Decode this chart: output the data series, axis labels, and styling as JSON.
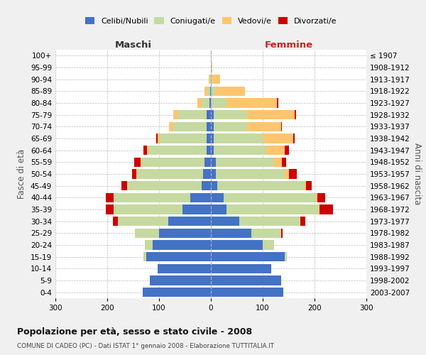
{
  "age_groups": [
    "100+",
    "95-99",
    "90-94",
    "85-89",
    "80-84",
    "75-79",
    "70-74",
    "65-69",
    "60-64",
    "55-59",
    "50-54",
    "45-49",
    "40-44",
    "35-39",
    "30-34",
    "25-29",
    "20-24",
    "15-19",
    "10-14",
    "5-9",
    "0-4"
  ],
  "birth_years": [
    "≤ 1907",
    "1908-1912",
    "1913-1917",
    "1918-1922",
    "1923-1927",
    "1928-1932",
    "1933-1937",
    "1938-1942",
    "1943-1947",
    "1948-1952",
    "1953-1957",
    "1958-1962",
    "1963-1967",
    "1968-1972",
    "1973-1977",
    "1978-1982",
    "1983-1987",
    "1988-1992",
    "1993-1997",
    "1998-2002",
    "2003-2007"
  ],
  "maschi_celibe": [
    0,
    0,
    0,
    2,
    3,
    8,
    8,
    8,
    8,
    12,
    15,
    18,
    40,
    55,
    82,
    100,
    112,
    125,
    103,
    118,
    132
  ],
  "maschi_coniugato": [
    0,
    0,
    2,
    5,
    15,
    55,
    65,
    90,
    112,
    122,
    128,
    143,
    148,
    133,
    97,
    46,
    15,
    5,
    0,
    0,
    0
  ],
  "maschi_vedovo": [
    0,
    0,
    2,
    5,
    8,
    10,
    8,
    5,
    3,
    2,
    1,
    0,
    0,
    0,
    0,
    0,
    0,
    0,
    0,
    0,
    0
  ],
  "maschi_divorziato": [
    0,
    0,
    0,
    0,
    0,
    0,
    0,
    2,
    7,
    12,
    8,
    12,
    15,
    15,
    10,
    0,
    0,
    0,
    0,
    0,
    0
  ],
  "femmine_nubile": [
    0,
    0,
    0,
    0,
    0,
    5,
    5,
    5,
    5,
    10,
    10,
    12,
    25,
    30,
    55,
    78,
    100,
    142,
    116,
    135,
    140
  ],
  "femmine_coniugata": [
    0,
    1,
    3,
    8,
    30,
    65,
    65,
    97,
    102,
    112,
    132,
    167,
    178,
    178,
    117,
    57,
    22,
    5,
    0,
    0,
    0
  ],
  "femmine_vedova": [
    0,
    2,
    15,
    58,
    98,
    92,
    65,
    57,
    36,
    15,
    8,
    5,
    2,
    1,
    0,
    0,
    0,
    0,
    0,
    0,
    0
  ],
  "femmine_divorziata": [
    0,
    0,
    0,
    0,
    2,
    3,
    2,
    3,
    8,
    8,
    16,
    10,
    15,
    26,
    10,
    3,
    0,
    0,
    0,
    0,
    0
  ],
  "colors_celibe": "#4472c4",
  "colors_coniugato": "#c5d9a0",
  "colors_vedovo": "#ffc56e",
  "colors_divorziato": "#cc0000",
  "legend_labels": [
    "Celibi/Nubili",
    "Coniugati/e",
    "Vedovi/e",
    "Divorzati/e"
  ],
  "title": "Popolazione per età, sesso e stato civile - 2008",
  "subtitle": "COMUNE DI CADEO (PC) - Dati ISTAT 1° gennaio 2008 - Elaborazione TUTTITALIA.IT",
  "header_left": "Maschi",
  "header_right": "Femmine",
  "ylabel_left": "Fasce di età",
  "ylabel_right": "Anni di nascita",
  "xlim": 300,
  "bg_color": "#f0f0f0",
  "plot_bg": "#ffffff",
  "grid_color": "#bbbbbb"
}
